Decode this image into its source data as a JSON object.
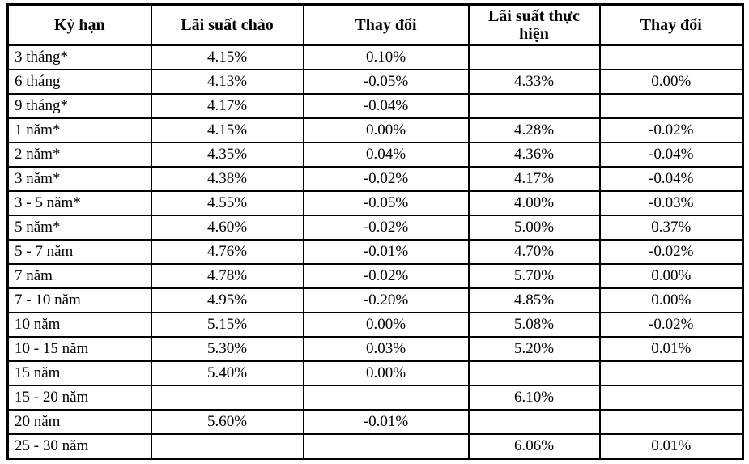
{
  "colors": {
    "background": "#ffffff",
    "border": "#000000",
    "text": "#000000"
  },
  "table": {
    "headers": [
      "Kỳ hạn",
      "Lãi suất chào",
      "Thay đổi",
      "Lãi suất thực hiện",
      "Thay đổi"
    ],
    "rows": [
      [
        "3 tháng*",
        "4.15%",
        "0.10%",
        "",
        ""
      ],
      [
        "6 tháng",
        "4.13%",
        "-0.05%",
        "4.33%",
        "0.00%"
      ],
      [
        "9 tháng*",
        "4.17%",
        "-0.04%",
        "",
        ""
      ],
      [
        "1 năm*",
        "4.15%",
        "0.00%",
        "4.28%",
        "-0.02%"
      ],
      [
        "2 năm*",
        "4.35%",
        "0.04%",
        "4.36%",
        "-0.04%"
      ],
      [
        "3 năm*",
        "4.38%",
        "-0.02%",
        "4.17%",
        "-0.04%"
      ],
      [
        "3 - 5 năm*",
        "4.55%",
        "-0.05%",
        "4.00%",
        "-0.03%"
      ],
      [
        "5 năm*",
        "4.60%",
        "-0.02%",
        "5.00%",
        "0.37%"
      ],
      [
        "5 - 7 năm",
        "4.76%",
        "-0.01%",
        "4.70%",
        "-0.02%"
      ],
      [
        "7 năm",
        "4.78%",
        "-0.02%",
        "5.70%",
        "0.00%"
      ],
      [
        "7 - 10 năm",
        "4.95%",
        "-0.20%",
        "4.85%",
        "0.00%"
      ],
      [
        "10 năm",
        "5.15%",
        "0.00%",
        "5.08%",
        "-0.02%"
      ],
      [
        "10 - 15 năm",
        "5.30%",
        "0.03%",
        "5.20%",
        "0.01%"
      ],
      [
        "15 năm",
        "5.40%",
        "0.00%",
        "",
        ""
      ],
      [
        "15 - 20 năm",
        "",
        "",
        "6.10%",
        ""
      ],
      [
        "20 năm",
        "5.60%",
        "-0.01%",
        "",
        ""
      ],
      [
        "25 - 30 năm",
        "",
        "",
        "6.06%",
        "0.01%"
      ]
    ]
  }
}
